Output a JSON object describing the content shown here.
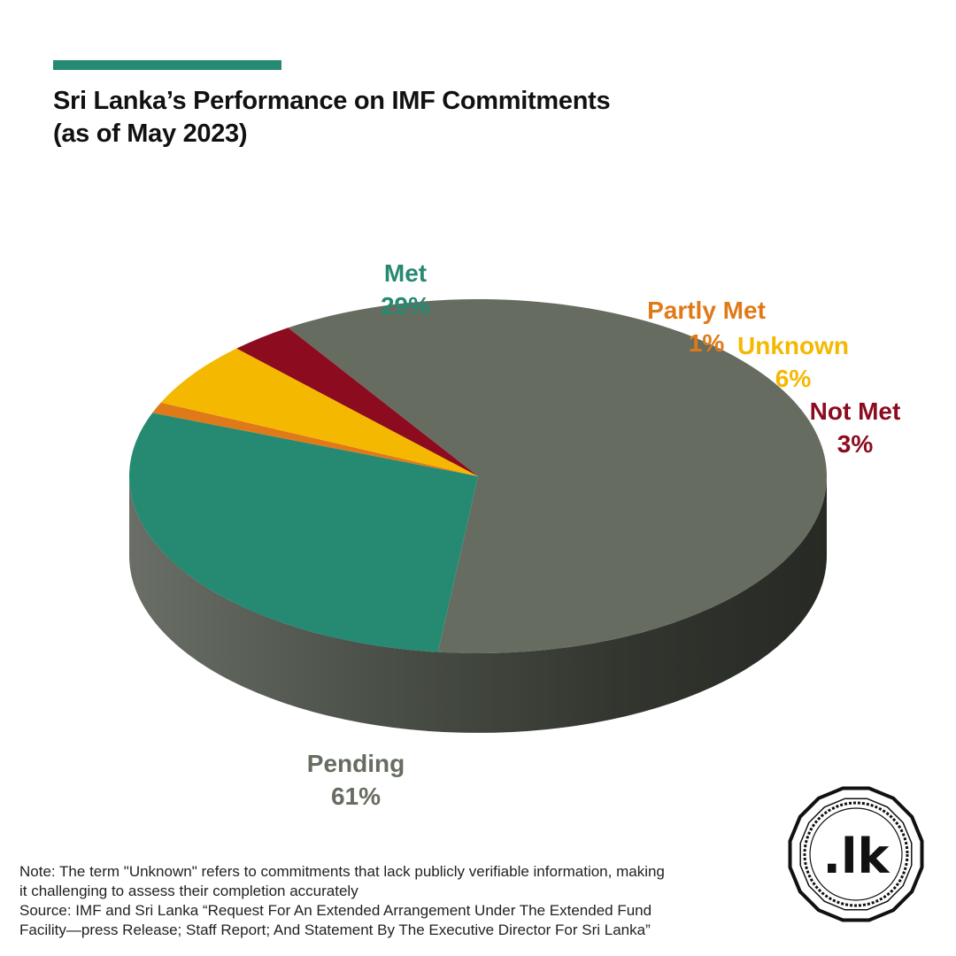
{
  "accent_color": "#268a73",
  "title": {
    "line1": "Sri Lanka’s Performance on IMF Commitments",
    "line2": "(as of May 2023)"
  },
  "chart_data": {
    "type": "pie",
    "style": "3d",
    "unit": "%",
    "title": "Sri Lanka’s Performance on IMF Commitments (as of May 2023)",
    "slices": [
      {
        "label": "Pending",
        "value": 61,
        "value_label": "61%",
        "color": "#666d60"
      },
      {
        "label": "Met",
        "value": 29,
        "value_label": "29%",
        "color": "#268a73"
      },
      {
        "label": "Partly Met",
        "value": 1,
        "value_label": "1%",
        "color": "#e07a18"
      },
      {
        "label": "Unknown",
        "value": 6,
        "value_label": "6%",
        "color": "#f5b800"
      },
      {
        "label": "Not Met",
        "value": 3,
        "value_label": "3%",
        "color": "#8c0b1f"
      }
    ]
  },
  "footnote": {
    "note_line1": "Note: The term \"Unknown\" refers to commitments that lack publicly verifiable information, making",
    "note_line2": "it challenging to assess their completion accurately",
    "source_line1": "Source: IMF and Sri Lanka “Request For An Extended Arrangement Under The Extended Fund",
    "source_line2": "Facility—press Release; Staff Report; And Statement By The Executive Director For Sri Lanka”"
  },
  "logo": {
    "text": ".lk"
  }
}
